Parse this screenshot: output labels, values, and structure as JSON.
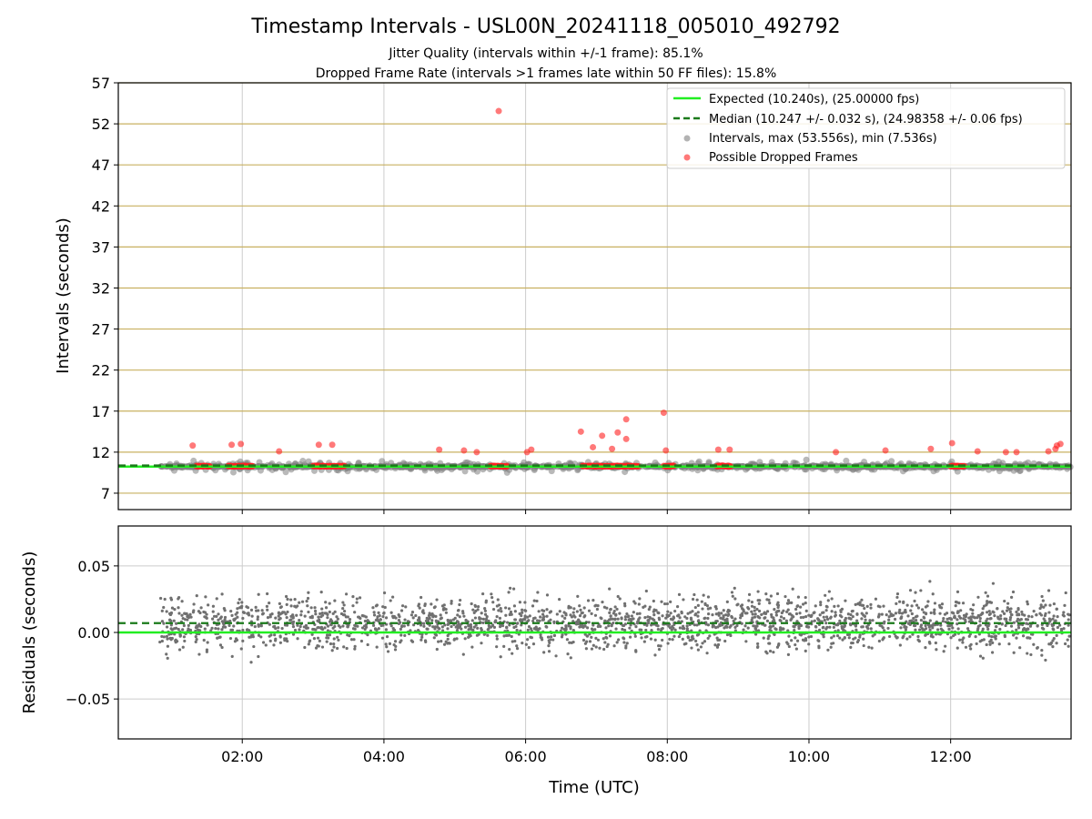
{
  "title": "Timestamp Intervals - USL00N_20241118_005010_492792",
  "subtitle_1": "Jitter Quality (intervals within +/-1 frame): 85.1%",
  "subtitle_2": "Dropped Frame Rate (intervals >1 frames late within 50 FF files): 15.8%",
  "colors": {
    "expected": "#22ee22",
    "median": "#1a7a1a",
    "intervals": "#808080",
    "dropped": "#ff2020",
    "hgrid_top": "#c8b060",
    "grid": "#cccccc",
    "residual": "#707070"
  },
  "chart_data": [
    {
      "type": "scatter",
      "ylabel": "Intervals (seconds)",
      "xlim_hours": [
        0.25,
        13.7
      ],
      "ylim": [
        5,
        57
      ],
      "yticks": [
        7,
        12,
        17,
        22,
        27,
        32,
        37,
        42,
        47,
        52,
        57
      ],
      "grid": "on",
      "legend_position": "top-right",
      "legend": [
        "Expected (10.240s), (25.00000 fps)",
        "Median (10.247 +/- 0.032 s), (24.98358 +/- 0.06 fps)",
        "Intervals, max (53.556s), min (7.536s)",
        "Possible Dropped Frames"
      ],
      "expected_interval": 10.24,
      "median_interval": 10.247,
      "dropped_points": [
        {
          "x": 5.62,
          "y": 53.556
        },
        {
          "x": 7.95,
          "y": 16.8
        },
        {
          "x": 7.42,
          "y": 16.0
        },
        {
          "x": 6.78,
          "y": 14.5
        },
        {
          "x": 7.3,
          "y": 14.4
        },
        {
          "x": 7.42,
          "y": 13.6
        },
        {
          "x": 7.08,
          "y": 14.0
        },
        {
          "x": 1.3,
          "y": 12.8
        },
        {
          "x": 1.85,
          "y": 12.9
        },
        {
          "x": 1.98,
          "y": 13.0
        },
        {
          "x": 3.08,
          "y": 12.9
        },
        {
          "x": 3.27,
          "y": 12.9
        },
        {
          "x": 2.52,
          "y": 12.1
        },
        {
          "x": 4.78,
          "y": 12.3
        },
        {
          "x": 5.13,
          "y": 12.2
        },
        {
          "x": 5.31,
          "y": 12.0
        },
        {
          "x": 6.02,
          "y": 12.0
        },
        {
          "x": 6.08,
          "y": 12.3
        },
        {
          "x": 6.95,
          "y": 12.6
        },
        {
          "x": 7.22,
          "y": 12.4
        },
        {
          "x": 7.98,
          "y": 12.2
        },
        {
          "x": 8.72,
          "y": 12.3
        },
        {
          "x": 8.88,
          "y": 12.3
        },
        {
          "x": 10.38,
          "y": 12.0
        },
        {
          "x": 11.08,
          "y": 12.2
        },
        {
          "x": 11.72,
          "y": 12.4
        },
        {
          "x": 12.02,
          "y": 13.1
        },
        {
          "x": 12.38,
          "y": 12.1
        },
        {
          "x": 12.78,
          "y": 12.0
        },
        {
          "x": 12.93,
          "y": 12.0
        },
        {
          "x": 13.38,
          "y": 12.1
        },
        {
          "x": 13.5,
          "y": 12.8
        },
        {
          "x": 13.55,
          "y": 13.0
        },
        {
          "x": 13.48,
          "y": 12.4
        }
      ],
      "dropped_clusters": [
        {
          "x_start": 1.35,
          "x_end": 1.55,
          "y": 10.3
        },
        {
          "x_start": 1.8,
          "x_end": 2.15,
          "y": 10.3
        },
        {
          "x_start": 3.0,
          "x_end": 3.45,
          "y": 10.3
        },
        {
          "x_start": 5.5,
          "x_end": 5.75,
          "y": 10.3
        },
        {
          "x_start": 6.8,
          "x_end": 7.6,
          "y": 10.3
        },
        {
          "x_start": 7.95,
          "x_end": 8.1,
          "y": 10.3
        },
        {
          "x_start": 8.7,
          "x_end": 8.9,
          "y": 10.3
        },
        {
          "x_start": 12.0,
          "x_end": 12.2,
          "y": 10.3
        }
      ]
    },
    {
      "type": "scatter",
      "xlabel": "Time (UTC)",
      "ylabel": "Residuals (seconds)",
      "xlim_hours": [
        0.25,
        13.7
      ],
      "ylim": [
        -0.08,
        0.08
      ],
      "yticks": [
        0.05,
        0.0,
        -0.05
      ],
      "ytick_labels": [
        "0.05",
        "0.00",
        "−0.05"
      ],
      "xticks_hours": [
        2,
        4,
        6,
        8,
        10,
        12
      ],
      "xtick_labels": [
        "02:00",
        "04:00",
        "06:00",
        "08:00",
        "10:00",
        "12:00"
      ],
      "grid": "on",
      "expected_residual": 0.0,
      "median_residual": 0.007,
      "data_start_hours": 0.83,
      "data_end_hours": 13.7,
      "residual_spread": 0.024
    }
  ]
}
